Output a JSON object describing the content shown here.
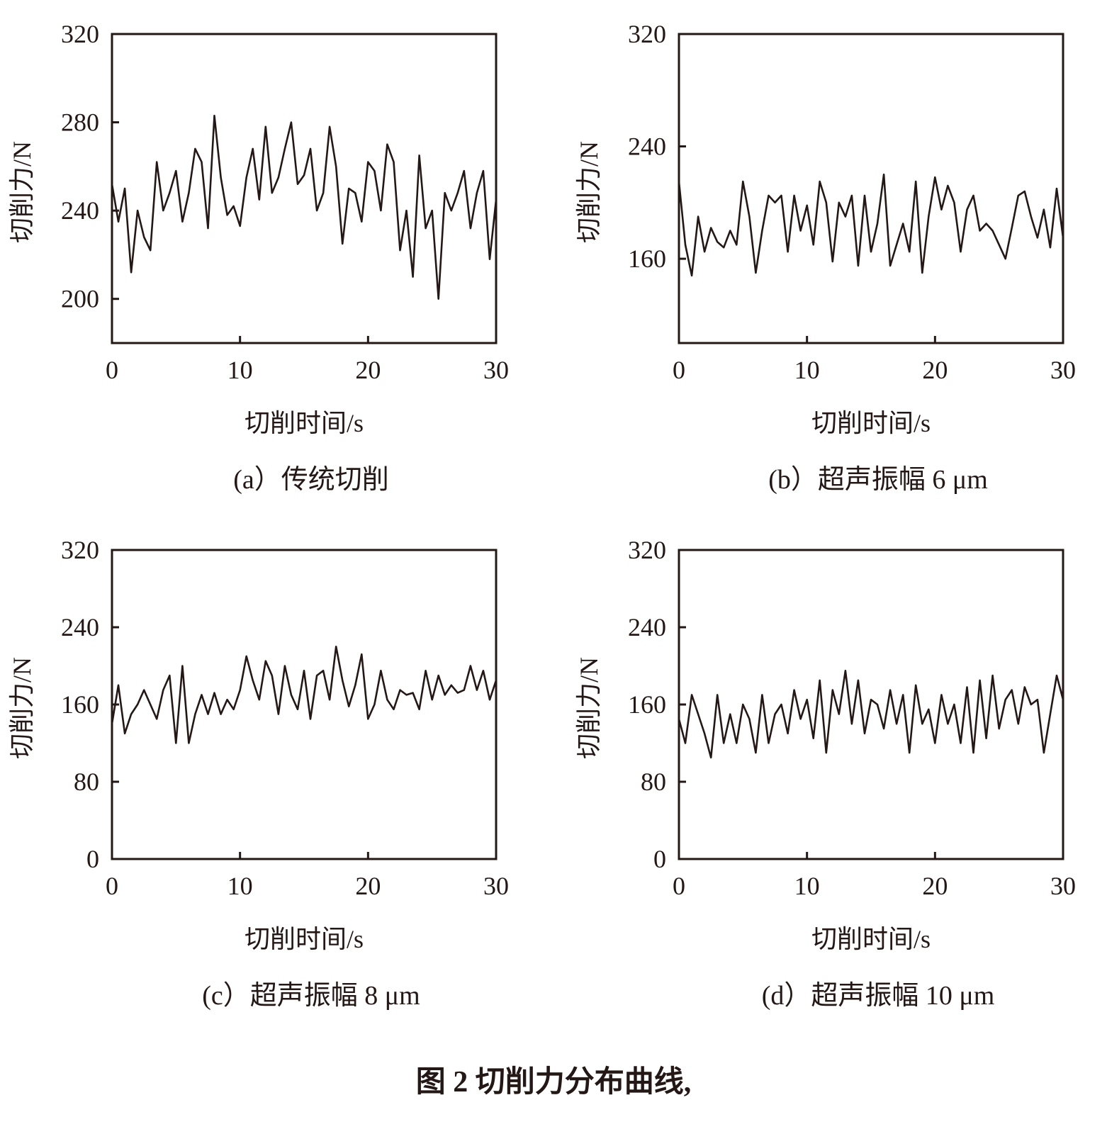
{
  "caption": "图 2 切削力分布曲线,",
  "colors": {
    "line": "#231815",
    "axis": "#231815"
  },
  "chart_data": [
    {
      "type": "line",
      "subtitle": "(a）传统切削",
      "xlabel": "切削时间/s",
      "ylabel": "切削力/N",
      "xlim": [
        0,
        30
      ],
      "ylim": [
        180,
        320
      ],
      "xticks": [
        0,
        10,
        20,
        30
      ],
      "yticks": [
        200,
        240,
        280,
        320
      ],
      "grid": false,
      "x": [
        0,
        0.5,
        1,
        1.5,
        2,
        2.5,
        3,
        3.5,
        4,
        4.5,
        5,
        5.5,
        6,
        6.5,
        7,
        7.5,
        8,
        8.5,
        9,
        9.5,
        10,
        10.5,
        11,
        11.5,
        12,
        12.5,
        13,
        13.5,
        14,
        14.5,
        15,
        15.5,
        16,
        16.5,
        17,
        17.5,
        18,
        18.5,
        19,
        19.5,
        20,
        20.5,
        21,
        21.5,
        22,
        22.5,
        23,
        23.5,
        24,
        24.5,
        25,
        25.5,
        26,
        26.5,
        27,
        27.5,
        28,
        28.5,
        29,
        29.5,
        30
      ],
      "values": [
        252,
        235,
        250,
        212,
        240,
        228,
        222,
        262,
        240,
        248,
        258,
        235,
        248,
        268,
        262,
        232,
        283,
        255,
        238,
        242,
        233,
        255,
        268,
        245,
        278,
        248,
        255,
        268,
        280,
        252,
        256,
        268,
        240,
        248,
        278,
        260,
        225,
        250,
        248,
        235,
        262,
        258,
        240,
        270,
        262,
        222,
        240,
        210,
        265,
        232,
        240,
        200,
        248,
        240,
        248,
        258,
        232,
        248,
        258,
        218,
        245
      ]
    },
    {
      "type": "line",
      "subtitle": "(b）超声振幅 6 μm",
      "xlabel": "切削时间/s",
      "ylabel": "切削力/N",
      "xlim": [
        0,
        30
      ],
      "ylim": [
        100,
        320
      ],
      "xticks": [
        0,
        10,
        20,
        30
      ],
      "yticks": [
        160,
        240,
        320
      ],
      "grid": false,
      "x": [
        0,
        0.5,
        1,
        1.5,
        2,
        2.5,
        3,
        3.5,
        4,
        4.5,
        5,
        5.5,
        6,
        6.5,
        7,
        7.5,
        8,
        8.5,
        9,
        9.5,
        10,
        10.5,
        11,
        11.5,
        12,
        12.5,
        13,
        13.5,
        14,
        14.5,
        15,
        15.5,
        16,
        16.5,
        17,
        17.5,
        18,
        18.5,
        19,
        19.5,
        20,
        20.5,
        21,
        21.5,
        22,
        22.5,
        23,
        23.5,
        24,
        24.5,
        25,
        25.5,
        26,
        26.5,
        27,
        27.5,
        28,
        28.5,
        29,
        29.5,
        30
      ],
      "values": [
        215,
        170,
        148,
        190,
        165,
        182,
        172,
        168,
        180,
        170,
        215,
        190,
        150,
        180,
        205,
        200,
        205,
        165,
        205,
        180,
        198,
        170,
        215,
        200,
        158,
        200,
        190,
        205,
        155,
        205,
        165,
        185,
        220,
        155,
        170,
        185,
        165,
        215,
        150,
        190,
        218,
        195,
        212,
        200,
        165,
        195,
        205,
        180,
        185,
        180,
        170,
        160,
        182,
        205,
        208,
        190,
        175,
        195,
        168,
        210,
        175
      ]
    },
    {
      "type": "line",
      "subtitle": "(c）超声振幅 8 μm",
      "xlabel": "切削时间/s",
      "ylabel": "切削力/N",
      "xlim": [
        0,
        30
      ],
      "ylim": [
        0,
        320
      ],
      "xticks": [
        0,
        10,
        20,
        30
      ],
      "yticks": [
        0,
        80,
        160,
        240,
        320
      ],
      "grid": false,
      "x": [
        0,
        0.5,
        1,
        1.5,
        2,
        2.5,
        3,
        3.5,
        4,
        4.5,
        5,
        5.5,
        6,
        6.5,
        7,
        7.5,
        8,
        8.5,
        9,
        9.5,
        10,
        10.5,
        11,
        11.5,
        12,
        12.5,
        13,
        13.5,
        14,
        14.5,
        15,
        15.5,
        16,
        16.5,
        17,
        17.5,
        18,
        18.5,
        19,
        19.5,
        20,
        20.5,
        21,
        21.5,
        22,
        22.5,
        23,
        23.5,
        24,
        24.5,
        25,
        25.5,
        26,
        26.5,
        27,
        27.5,
        28,
        28.5,
        29,
        29.5,
        30
      ],
      "values": [
        140,
        180,
        130,
        150,
        160,
        175,
        160,
        145,
        175,
        190,
        120,
        200,
        120,
        150,
        170,
        150,
        172,
        150,
        165,
        155,
        175,
        210,
        185,
        165,
        205,
        190,
        150,
        200,
        170,
        155,
        195,
        145,
        190,
        195,
        165,
        220,
        185,
        158,
        180,
        212,
        145,
        160,
        195,
        165,
        155,
        175,
        170,
        172,
        155,
        195,
        165,
        190,
        170,
        180,
        172,
        175,
        200,
        175,
        195,
        165,
        185
      ]
    },
    {
      "type": "line",
      "subtitle": "(d）超声振幅 10 μm",
      "xlabel": "切削时间/s",
      "ylabel": "切削力/N",
      "xlim": [
        0,
        30
      ],
      "ylim": [
        0,
        320
      ],
      "xticks": [
        0,
        10,
        20,
        30
      ],
      "yticks": [
        0,
        80,
        160,
        240,
        320
      ],
      "grid": false,
      "x": [
        0,
        0.5,
        1,
        1.5,
        2,
        2.5,
        3,
        3.5,
        4,
        4.5,
        5,
        5.5,
        6,
        6.5,
        7,
        7.5,
        8,
        8.5,
        9,
        9.5,
        10,
        10.5,
        11,
        11.5,
        12,
        12.5,
        13,
        13.5,
        14,
        14.5,
        15,
        15.5,
        16,
        16.5,
        17,
        17.5,
        18,
        18.5,
        19,
        19.5,
        20,
        20.5,
        21,
        21.5,
        22,
        22.5,
        23,
        23.5,
        24,
        24.5,
        25,
        25.5,
        26,
        26.5,
        27,
        27.5,
        28,
        28.5,
        29,
        29.5,
        30
      ],
      "values": [
        145,
        120,
        170,
        150,
        130,
        105,
        170,
        120,
        150,
        120,
        160,
        145,
        110,
        170,
        120,
        150,
        160,
        130,
        175,
        145,
        165,
        125,
        185,
        110,
        175,
        150,
        195,
        140,
        185,
        130,
        165,
        160,
        135,
        175,
        140,
        170,
        110,
        180,
        140,
        155,
        120,
        170,
        140,
        160,
        120,
        178,
        110,
        185,
        125,
        190,
        135,
        165,
        175,
        140,
        178,
        160,
        165,
        110,
        150,
        190,
        165
      ]
    }
  ]
}
